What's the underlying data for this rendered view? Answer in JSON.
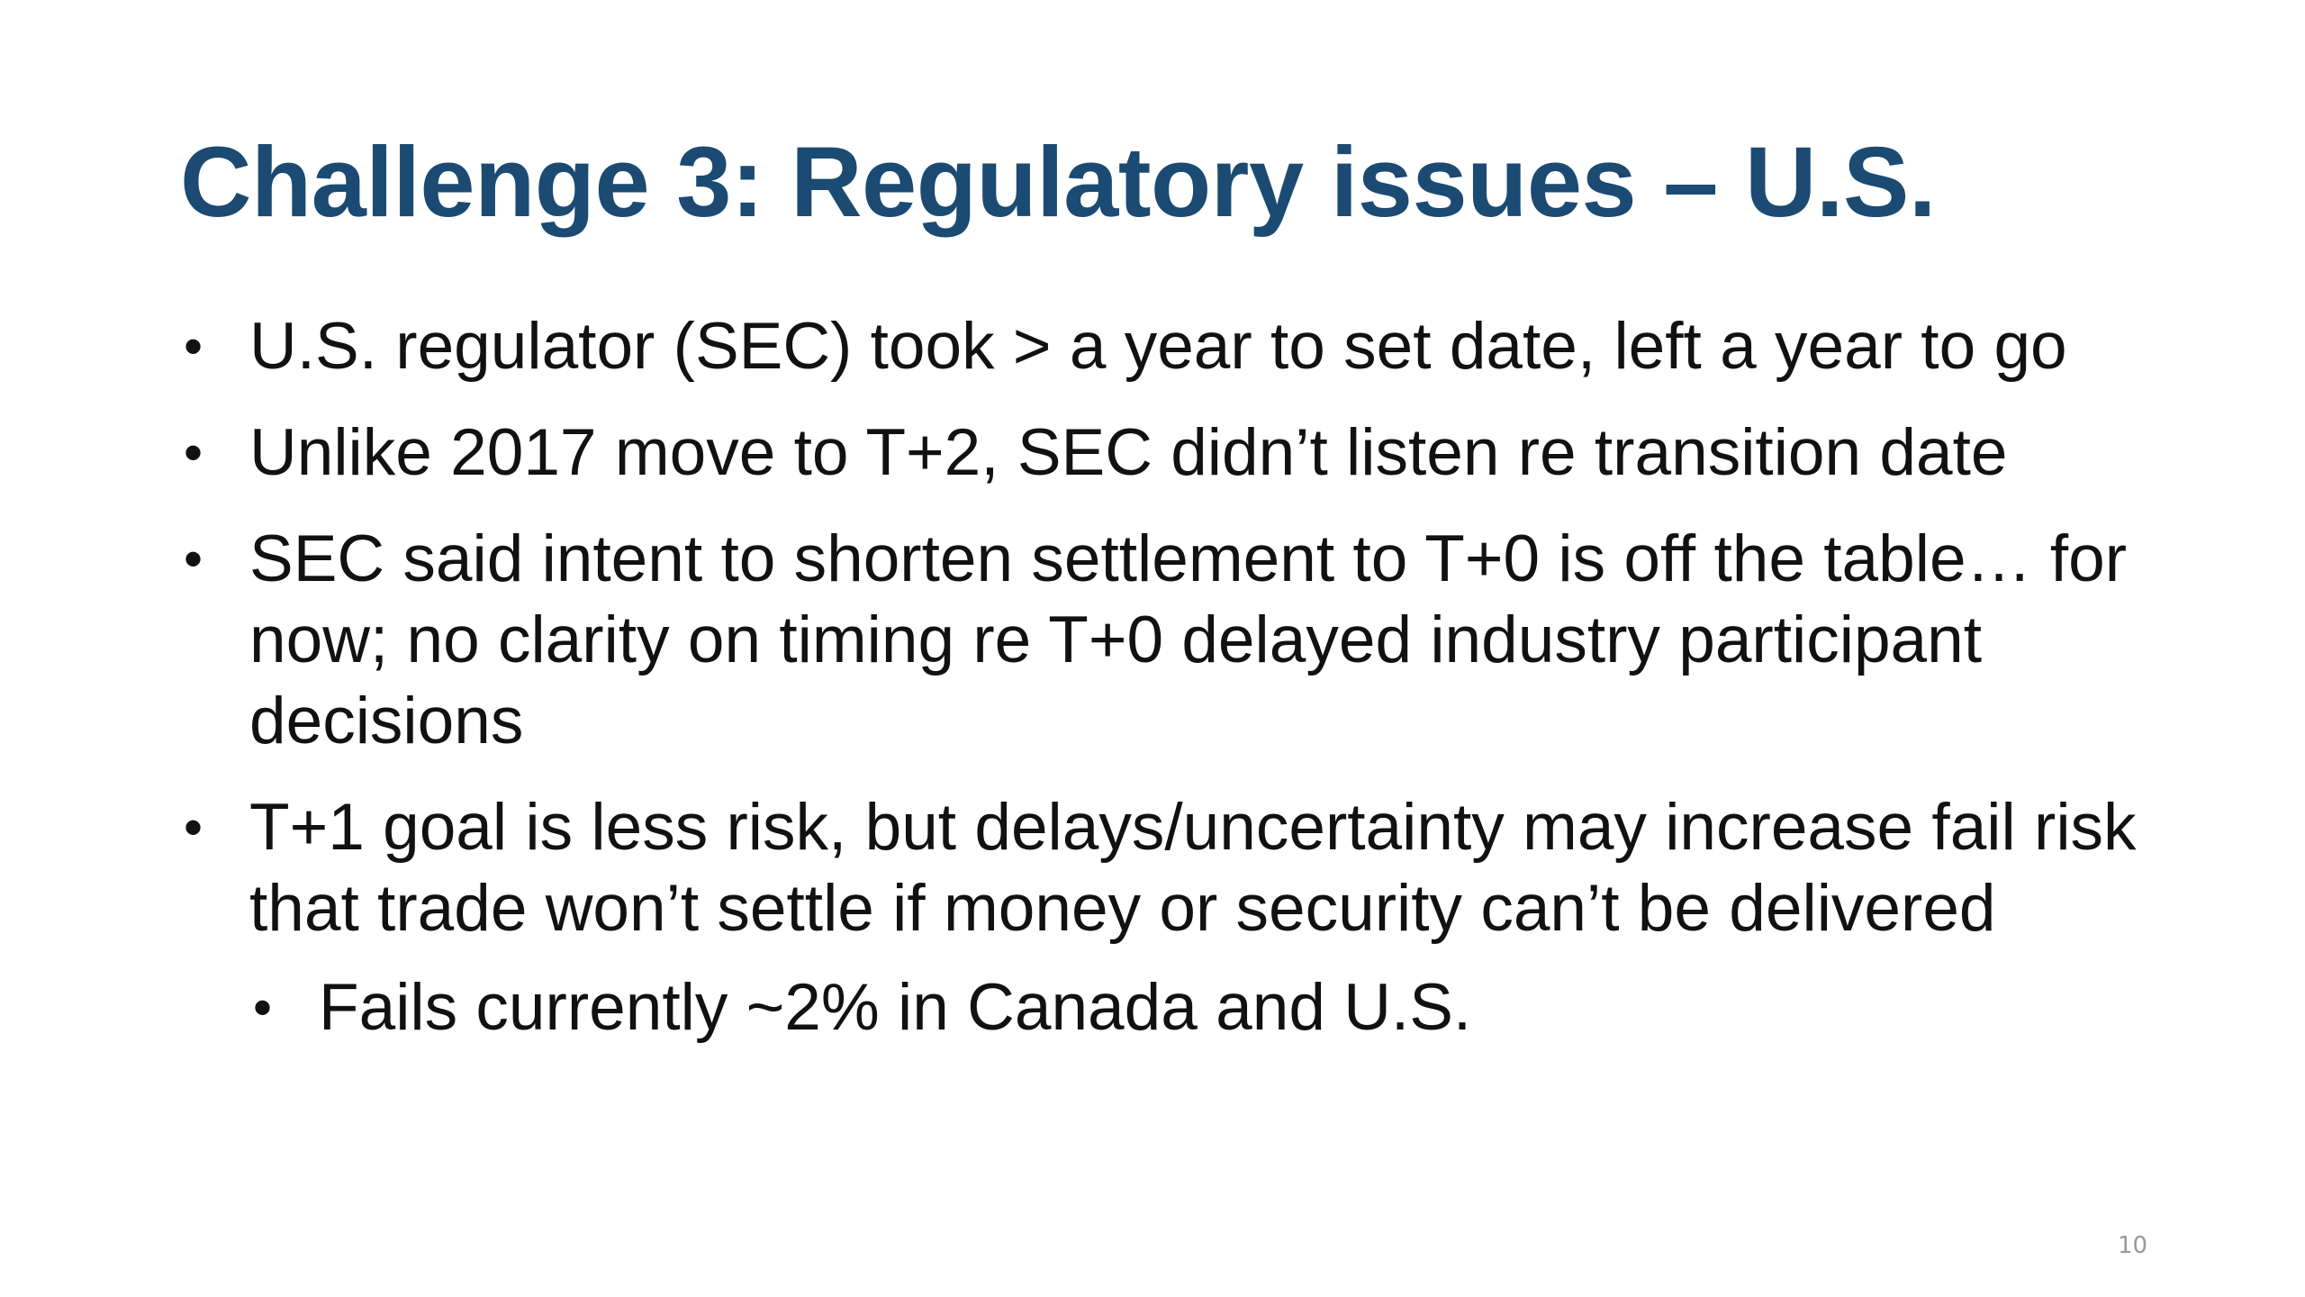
{
  "slide": {
    "title": "Challenge 3: Regulatory issues – U.S.",
    "bullets": [
      {
        "marker": "•",
        "text": "U.S. regulator (SEC) took > a year to set date, left a year to go"
      },
      {
        "marker": "•",
        "text": "Unlike 2017 move to T+2, SEC didn’t listen re transition date"
      },
      {
        "marker": "•",
        "text": "SEC said intent to shorten settlement to T+0 is off the table… for now; no clarity on timing re T+0 delayed industry participant decisions"
      },
      {
        "marker": "•",
        "text": "T+1 goal is less risk, but delays/uncertainty may increase fail risk that trade won’t settle if money or security can’t be delivered"
      }
    ],
    "sub_bullets": [
      {
        "marker": "•",
        "text": "Fails currently ~2% in Canada and U.S."
      }
    ],
    "page_number": "10"
  }
}
